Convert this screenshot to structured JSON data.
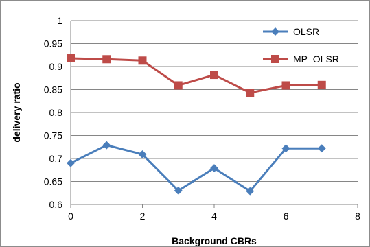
{
  "chart_data": {
    "type": "line",
    "xlabel": "Background CBRs",
    "ylabel": "delivery ratio",
    "xlim": [
      0,
      8
    ],
    "ylim": [
      0.6,
      1
    ],
    "x_ticks": [
      "0",
      "2",
      "4",
      "6",
      "8"
    ],
    "y_ticks": [
      "0.6",
      "0.65",
      "0.7",
      "0.75",
      "0.8",
      "0.85",
      "0.9",
      "0.95",
      "1"
    ],
    "grid": "horizontal",
    "legend_position": "top-right",
    "series": [
      {
        "name": "OLSR",
        "color": "#4a7ebb",
        "marker": "diamond",
        "x": [
          0,
          1,
          2,
          3,
          4,
          5,
          6,
          7
        ],
        "values": [
          0.69,
          0.729,
          0.709,
          0.63,
          0.679,
          0.629,
          0.722,
          0.722
        ]
      },
      {
        "name": "MP_OLSR",
        "color": "#be4b48",
        "marker": "square",
        "x": [
          0,
          1,
          2,
          3,
          4,
          5,
          6,
          7
        ],
        "values": [
          0.918,
          0.916,
          0.913,
          0.859,
          0.882,
          0.843,
          0.859,
          0.86
        ]
      }
    ]
  }
}
